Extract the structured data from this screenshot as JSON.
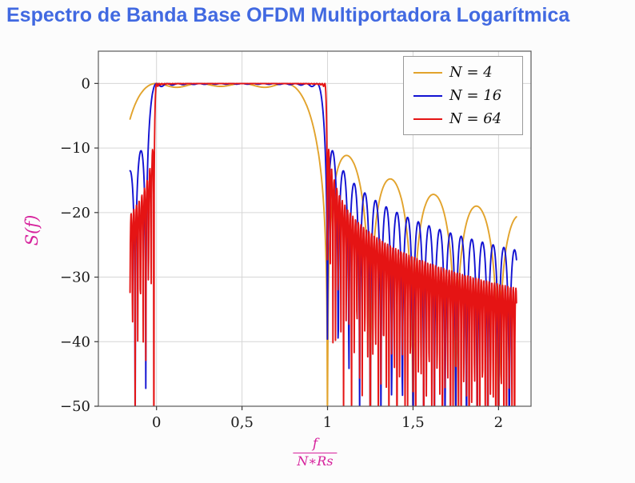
{
  "page": {
    "title": "Espectro de Banda Base OFDM Multiportadora Logarítmica"
  },
  "colors": {
    "title": "#4169e1",
    "axis_label": "#d6219c",
    "grid": "#d6d6d6",
    "frame": "#5a5a5a",
    "tick": "#3a3a3a",
    "plot_bg": "#ffffff",
    "page_bg": "#fcfcfc"
  },
  "y_axis_label": "S(f)",
  "x_axis_label": {
    "numerator": "f",
    "denominator": "N∗Rs"
  },
  "chart_data": {
    "type": "line",
    "title": "Espectro de Banda Base OFDM Multiportadora Logarítmica",
    "xlabel": "f/(N*Rs)",
    "ylabel": "S(f)",
    "xlim": [
      -0.34,
      2.19
    ],
    "ylim": [
      -50,
      5
    ],
    "x_data_range": [
      -0.155,
      2.105
    ],
    "samples": 1200,
    "grid": true,
    "legend_position": "top-right",
    "function": "S_dB(x) = 10*log10( sum_{k=0}^{N-1} sinc^2(N*x - k) ), sinc(u)=sin(pi*u)/(pi*u); flat 0 dB band over 0<=x<=1, common null at x=1, first sidelobe about -12 dB, sidelobe nulls every 1/N",
    "xticks": [
      {
        "v": 0,
        "label": "0"
      },
      {
        "v": 0.5,
        "label": "0,5"
      },
      {
        "v": 1,
        "label": "1"
      },
      {
        "v": 1.5,
        "label": "1,5"
      },
      {
        "v": 2,
        "label": "2"
      }
    ],
    "yticks": [
      {
        "v": 0,
        "label": "0"
      },
      {
        "v": -10,
        "label": "−10"
      },
      {
        "v": -20,
        "label": "−20"
      },
      {
        "v": -30,
        "label": "−30"
      },
      {
        "v": -40,
        "label": "−40"
      },
      {
        "v": -50,
        "label": "−50"
      }
    ],
    "series": [
      {
        "name": "N = 4",
        "N": 4,
        "color": "#e2a32c"
      },
      {
        "name": "N = 16",
        "N": 16,
        "color": "#1212d2"
      },
      {
        "name": "N = 64",
        "N": 64,
        "color": "#e51414"
      }
    ]
  }
}
